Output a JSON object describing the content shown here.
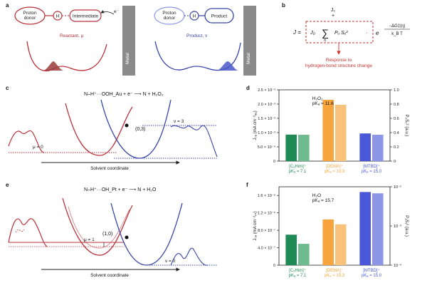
{
  "panels": {
    "a": {
      "letter": "a",
      "left": {
        "node1": "Proton donor",
        "node2": "H",
        "node3": "Intermediate",
        "electron": "e⁻",
        "state": "Reactant, μ",
        "metal": "Metal"
      },
      "right": {
        "node1": "Proton donor",
        "node2": "H",
        "node3": "Product",
        "state": "Product, ν",
        "metal": "Metal"
      }
    },
    "b": {
      "letter": "b",
      "j0_top": "J₀",
      "equation_lhs": "J =",
      "j0": "J₀",
      "sum": "∑",
      "sum_index": "n",
      "sum_term": "Pᵤ Sᵤ²",
      "exponential": "e",
      "exponent_num": "−ΔG‡(η)",
      "exponent_den": "k_B T",
      "caption": "Response to hydrogen-bond structure change",
      "accent": "#d0302f"
    },
    "c": {
      "letter": "c",
      "reaction": "N–H⁺···OOH_Au + e⁻ ⟶ N + H₂O₂",
      "crossing": "(0,3)",
      "mu": "μ = 0",
      "nu": "ν = 3",
      "axis": "Solvent coordinate"
    },
    "e": {
      "letter": "e",
      "reaction": "N–H⁺···OH_Pt + e⁻ ⟶ N + H₂O",
      "crossing": "(1,0)",
      "mu": "μ = 1",
      "nu": "ν = 0",
      "axis": "Solvent coordinate"
    }
  },
  "colors": {
    "red": "#b8323a",
    "blue": "#3844a8",
    "metal": "#8a8a8a"
  },
  "chart_data": [
    {
      "panel": "d",
      "type": "bar",
      "annotation": "H₂O₂\npKₐ = 11.6",
      "ylabel_left": "J₀ₐ (mA cm⁻²ₐᵤ)",
      "ylabel_right": "P₀S₀² (a.u.)",
      "ylim_left": [
        0,
        0.0025
      ],
      "yticks_left": [
        "0",
        "5.0 × 10⁻⁴",
        "1.0 × 10⁻³",
        "1.5 × 10⁻³",
        "2.0 × 10⁻³",
        "2.5 × 10⁻³"
      ],
      "ylim_right": [
        0,
        1.0
      ],
      "yticks_right": [
        "0",
        "0.2",
        "0.4",
        "0.6",
        "0.8",
        "1.0"
      ],
      "categories": [
        {
          "name": "[C₂Him]⁺",
          "pka": "pKₐ = 7.1",
          "color": "#1f8a56",
          "light": "#6dbb8f"
        },
        {
          "name": "[DEMA]⁺",
          "pka": "pKₐ = 10.3",
          "color": "#f7a43c",
          "light": "#f9c27a"
        },
        {
          "name": "[MTBD]⁺",
          "pka": "pKₐ = 15.0",
          "color": "#4a58d8",
          "light": "#8d96e6"
        }
      ],
      "series": [
        {
          "values": [
            0.00093,
            0.00215,
            0.00097
          ]
        },
        {
          "values": [
            0.37,
            0.79,
            0.37
          ]
        }
      ]
    },
    {
      "panel": "f",
      "type": "bar",
      "annotation": "H₂O\npKₐ = 15.7",
      "ylabel_left": "J₀ₐ (mA cm⁻²ₚₜ)",
      "ylabel_right": "P₁S₁² (a.u.)",
      "ylim_left": [
        0,
        1.8e-06
      ],
      "yticks_left": [
        "0",
        "4.0 × 10⁻⁷",
        "8.0 × 10⁻⁷",
        "1.2 × 10⁻⁶",
        "1.6 × 10⁻⁶"
      ],
      "ylim_right": [
        0.0001,
        0.01
      ],
      "yticks_right": [
        "10⁻⁴",
        "10⁻³",
        "10⁻²"
      ],
      "yscale_right": "log",
      "categories": [
        {
          "name": "[C₂Him]⁺",
          "pka": "pKₐ = 7.1",
          "color": "#1f8a56",
          "light": "#6dbb8f"
        },
        {
          "name": "[DEMA]⁺",
          "pka": "pKₐ = 10.3",
          "color": "#f7a43c",
          "light": "#f9c27a"
        },
        {
          "name": "[MTBD]⁺",
          "pka": "pKₐ = 15.0",
          "color": "#4a58d8",
          "light": "#8d96e6"
        }
      ],
      "series": [
        {
          "values": [
            7e-07,
            1.05e-06,
            1.68e-06
          ]
        },
        {
          "values": [
            0.00035,
            0.0011,
            0.0068
          ]
        }
      ]
    }
  ]
}
